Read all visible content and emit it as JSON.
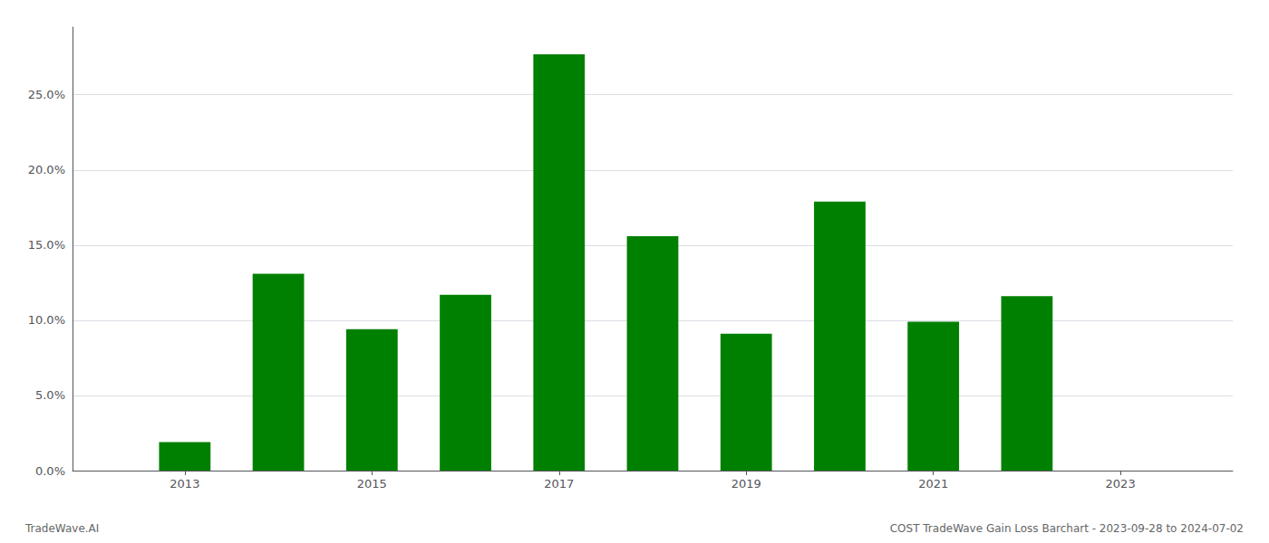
{
  "chart_data": {
    "type": "bar",
    "x": [
      2013,
      2014,
      2015,
      2016,
      2017,
      2018,
      2019,
      2020,
      2021,
      2022,
      2023
    ],
    "values": [
      0.019,
      0.131,
      0.094,
      0.117,
      0.277,
      0.156,
      0.091,
      0.179,
      0.099,
      0.116,
      0.0
    ],
    "color": "#008000",
    "xlim": [
      2011.8,
      2024.2
    ],
    "xticks": [
      2013,
      2015,
      2017,
      2019,
      2021,
      2023
    ],
    "ylim": [
      0,
      0.295
    ],
    "yticks": [
      {
        "value": 0.0,
        "label": "0.0%"
      },
      {
        "value": 0.05,
        "label": "5.0%"
      },
      {
        "value": 0.1,
        "label": "10.0%"
      },
      {
        "value": 0.15,
        "label": "15.0%"
      },
      {
        "value": 0.2,
        "label": "20.0%"
      },
      {
        "value": 0.25,
        "label": "25.0%"
      }
    ],
    "grid": true,
    "annotations": [
      "TradeWave.AI",
      "COST TradeWave Gain Loss Barchart - 2023-09-28 to 2024-07-02"
    ]
  }
}
